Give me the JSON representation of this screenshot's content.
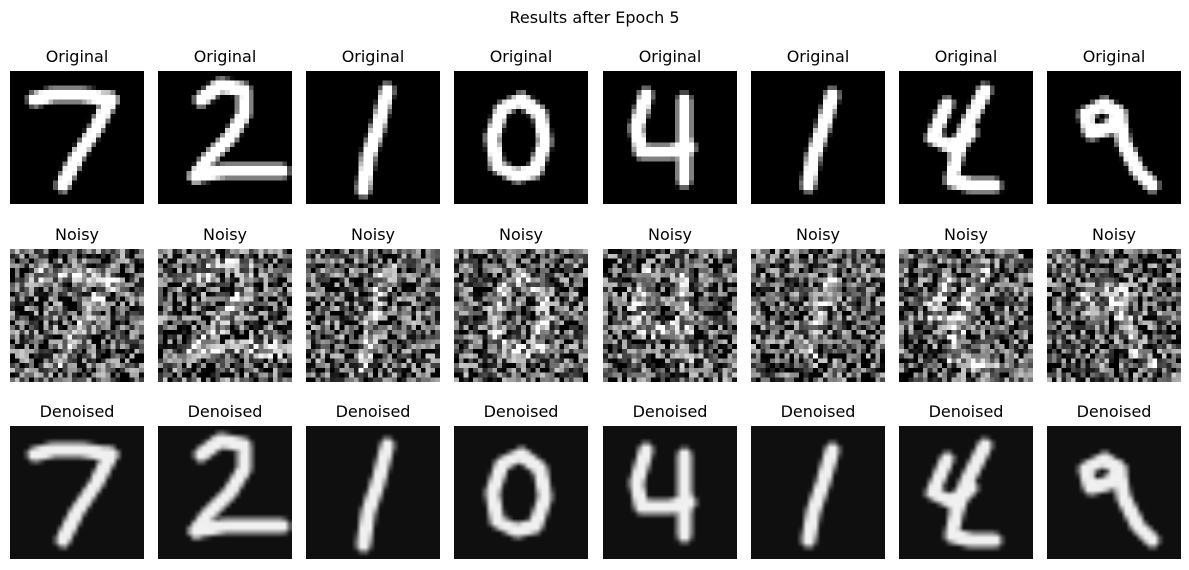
{
  "figure": {
    "title": "Results after Epoch 5"
  },
  "chart_data": {
    "type": "image-grid",
    "title": "Results after Epoch 5",
    "colormap": "gray",
    "axes": "off",
    "row_titles": [
      "Original",
      "Noisy",
      "Denoised"
    ],
    "columns": [
      {
        "digit": "7"
      },
      {
        "digit": "2"
      },
      {
        "digit": "1"
      },
      {
        "digit": "0"
      },
      {
        "digit": "4"
      },
      {
        "digit": "1"
      },
      {
        "digit": "4"
      },
      {
        "digit": "9"
      }
    ]
  }
}
